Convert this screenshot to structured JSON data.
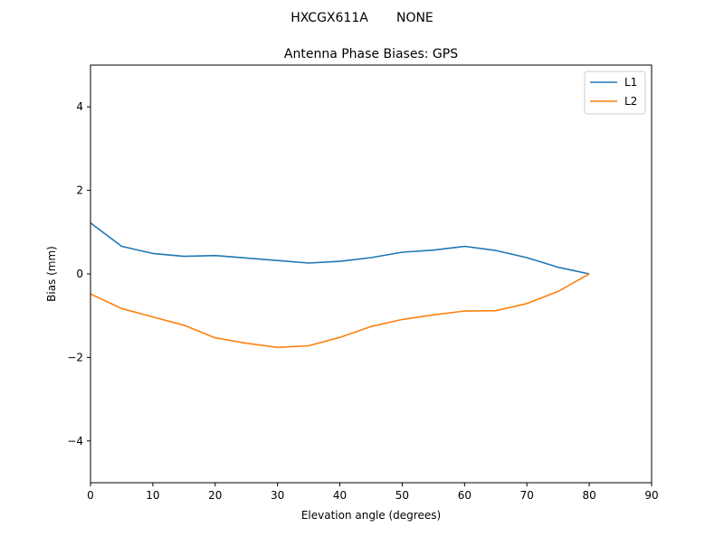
{
  "chart_data": {
    "type": "line",
    "suptitle": "HXCGX611A       NONE",
    "title": "Antenna Phase Biases: GPS",
    "xlabel": "Elevation angle (degrees)",
    "ylabel": "Bias (mm)",
    "xlim": [
      0,
      90
    ],
    "ylim": [
      -5,
      5
    ],
    "xticks": [
      0,
      10,
      20,
      30,
      40,
      50,
      60,
      70,
      80,
      90
    ],
    "yticks": [
      -4,
      -2,
      0,
      2,
      4
    ],
    "x": [
      0,
      5,
      10,
      15,
      20,
      25,
      30,
      35,
      40,
      45,
      50,
      55,
      60,
      65,
      70,
      75,
      80
    ],
    "series": [
      {
        "name": "L1",
        "color": "#1f77b4",
        "values": [
          1.22,
          0.66,
          0.49,
          0.42,
          0.44,
          0.38,
          0.32,
          0.26,
          0.3,
          0.39,
          0.52,
          0.57,
          0.66,
          0.56,
          0.39,
          0.16,
          0.0
        ]
      },
      {
        "name": "L2",
        "color": "#ff7f0e",
        "values": [
          -0.48,
          -0.83,
          -1.03,
          -1.23,
          -1.53,
          -1.66,
          -1.76,
          -1.72,
          -1.52,
          -1.26,
          -1.09,
          -0.98,
          -0.89,
          -0.88,
          -0.71,
          -0.42,
          0.0
        ]
      }
    ],
    "legend": "top-right",
    "grid": false
  }
}
